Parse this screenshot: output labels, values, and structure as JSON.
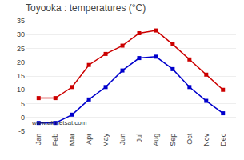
{
  "chart_data": {
    "type": "line",
    "title": "Toyooka : temperatures (°C)",
    "categories": [
      "Jan",
      "Feb",
      "Mar",
      "Apr",
      "May",
      "Jun",
      "Jul",
      "Aug",
      "Sep",
      "Oct",
      "Nov",
      "Dec"
    ],
    "series": [
      {
        "color": "#cc0000",
        "marker": "square",
        "values": [
          7,
          7,
          11,
          19,
          23,
          26,
          30.5,
          31.5,
          26.5,
          21,
          15.5,
          10
        ]
      },
      {
        "color": "#0000cc",
        "marker": "square",
        "values": [
          -2,
          -2,
          1,
          6.5,
          11,
          17,
          21.5,
          22,
          17.5,
          11,
          6,
          1.5
        ]
      }
    ],
    "ylim": [
      -5,
      35
    ],
    "yticks": [
      -5,
      0,
      5,
      10,
      15,
      20,
      25,
      30,
      35
    ],
    "grid": true,
    "annotations": [
      "www.allmetsat.com"
    ]
  }
}
